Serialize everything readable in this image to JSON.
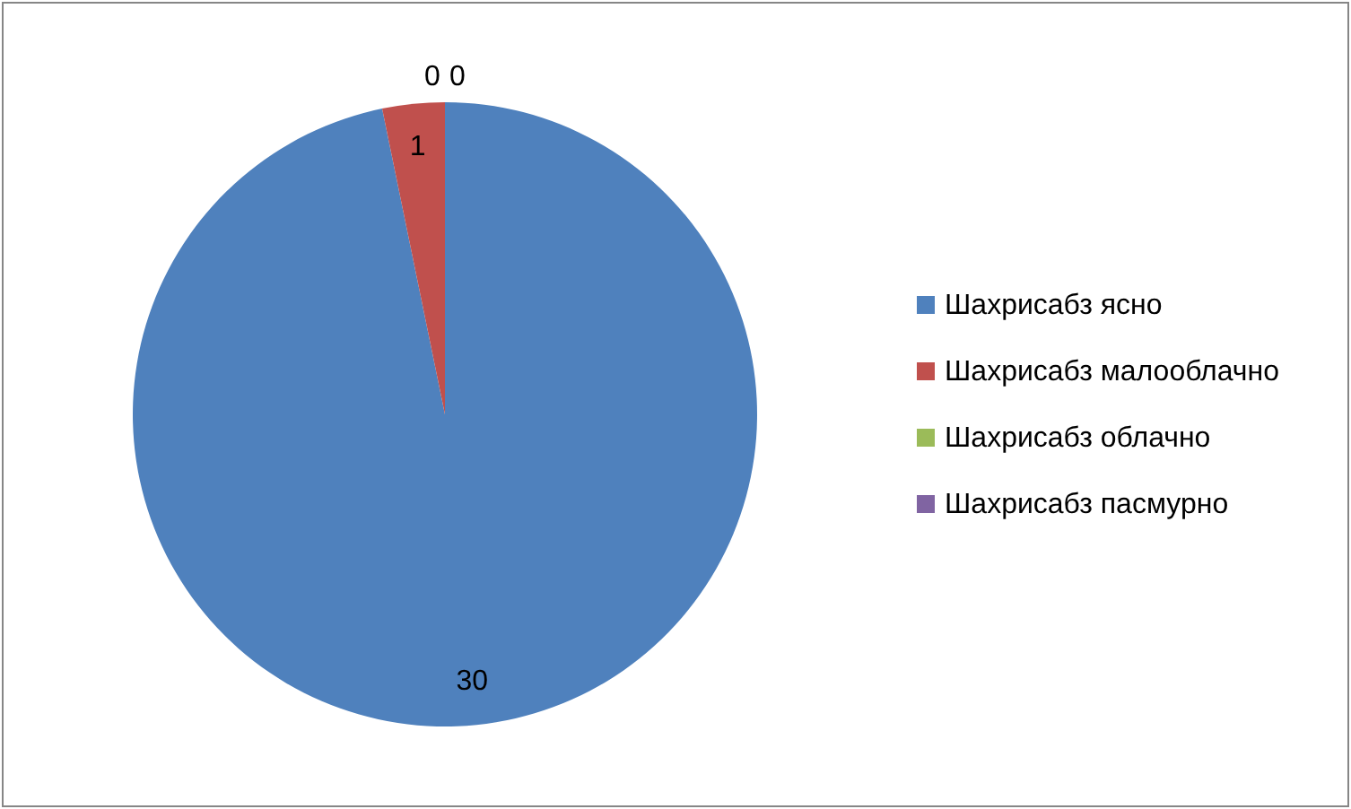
{
  "chart_data": {
    "type": "pie",
    "categories": [
      "Шахрисабз ясно",
      "Шахрисабз малооблачно",
      "Шахрисабз облачно",
      "Шахрисабз пасмурно"
    ],
    "values": [
      30,
      1,
      0,
      0
    ],
    "value_labels": [
      "30",
      "1",
      "0",
      "0"
    ],
    "colors": [
      "#4f81bd",
      "#c0504d",
      "#9bbb59",
      "#8064a2"
    ],
    "legend": "right"
  }
}
